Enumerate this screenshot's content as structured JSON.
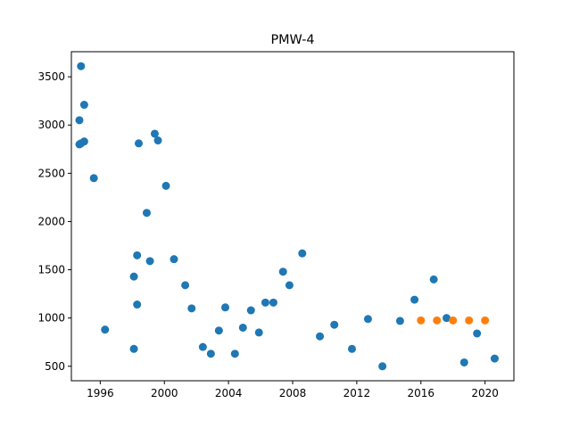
{
  "chart_data": {
    "type": "scatter",
    "title": "PMW-4",
    "xlabel": "",
    "ylabel": "",
    "xlim": [
      1994.2,
      2021.8
    ],
    "ylim": [
      350,
      3760
    ],
    "x_ticks": [
      1996,
      2000,
      2004,
      2008,
      2012,
      2016,
      2020
    ],
    "x_tick_labels": [
      "1996",
      "2000",
      "2004",
      "2008",
      "2012",
      "2016",
      "2020"
    ],
    "y_ticks": [
      500,
      1000,
      1500,
      2000,
      2500,
      3000,
      3500
    ],
    "y_tick_labels": [
      "500",
      "1000",
      "1500",
      "2000",
      "2500",
      "3000",
      "3500"
    ],
    "grid": false,
    "series": [
      {
        "color": "#1f77b4",
        "points": [
          {
            "x": 1994.7,
            "y": 3050
          },
          {
            "x": 1994.8,
            "y": 3610
          },
          {
            "x": 1995.0,
            "y": 3210
          },
          {
            "x": 1994.7,
            "y": 2800
          },
          {
            "x": 1994.8,
            "y": 2810
          },
          {
            "x": 1995.0,
            "y": 2830
          },
          {
            "x": 1995.6,
            "y": 2450
          },
          {
            "x": 1996.3,
            "y": 880
          },
          {
            "x": 1998.1,
            "y": 680
          },
          {
            "x": 1998.1,
            "y": 1430
          },
          {
            "x": 1998.3,
            "y": 1650
          },
          {
            "x": 1998.3,
            "y": 1140
          },
          {
            "x": 1998.4,
            "y": 2810
          },
          {
            "x": 1998.9,
            "y": 2090
          },
          {
            "x": 1999.1,
            "y": 1590
          },
          {
            "x": 1999.4,
            "y": 2910
          },
          {
            "x": 1999.6,
            "y": 2840
          },
          {
            "x": 2000.1,
            "y": 2370
          },
          {
            "x": 2000.6,
            "y": 1610
          },
          {
            "x": 2001.3,
            "y": 1340
          },
          {
            "x": 2001.7,
            "y": 1100
          },
          {
            "x": 2002.4,
            "y": 700
          },
          {
            "x": 2002.9,
            "y": 630
          },
          {
            "x": 2003.4,
            "y": 870
          },
          {
            "x": 2003.8,
            "y": 1110
          },
          {
            "x": 2004.4,
            "y": 630
          },
          {
            "x": 2004.9,
            "y": 900
          },
          {
            "x": 2005.4,
            "y": 1080
          },
          {
            "x": 2005.9,
            "y": 850
          },
          {
            "x": 2006.3,
            "y": 1160
          },
          {
            "x": 2006.8,
            "y": 1160
          },
          {
            "x": 2007.4,
            "y": 1480
          },
          {
            "x": 2007.8,
            "y": 1340
          },
          {
            "x": 2008.6,
            "y": 1670
          },
          {
            "x": 2009.7,
            "y": 810
          },
          {
            "x": 2010.6,
            "y": 930
          },
          {
            "x": 2011.7,
            "y": 680
          },
          {
            "x": 2012.7,
            "y": 990
          },
          {
            "x": 2013.6,
            "y": 500
          },
          {
            "x": 2014.7,
            "y": 970
          },
          {
            "x": 2015.6,
            "y": 1190
          },
          {
            "x": 2016.8,
            "y": 1400
          },
          {
            "x": 2017.6,
            "y": 1000
          },
          {
            "x": 2018.7,
            "y": 540
          },
          {
            "x": 2019.5,
            "y": 840
          },
          {
            "x": 2020.6,
            "y": 580
          }
        ]
      },
      {
        "color": "#ff7f0e",
        "points": [
          {
            "x": 2016.0,
            "y": 975
          },
          {
            "x": 2017.0,
            "y": 975
          },
          {
            "x": 2018.0,
            "y": 975
          },
          {
            "x": 2019.0,
            "y": 975
          },
          {
            "x": 2020.0,
            "y": 975
          }
        ]
      }
    ]
  }
}
